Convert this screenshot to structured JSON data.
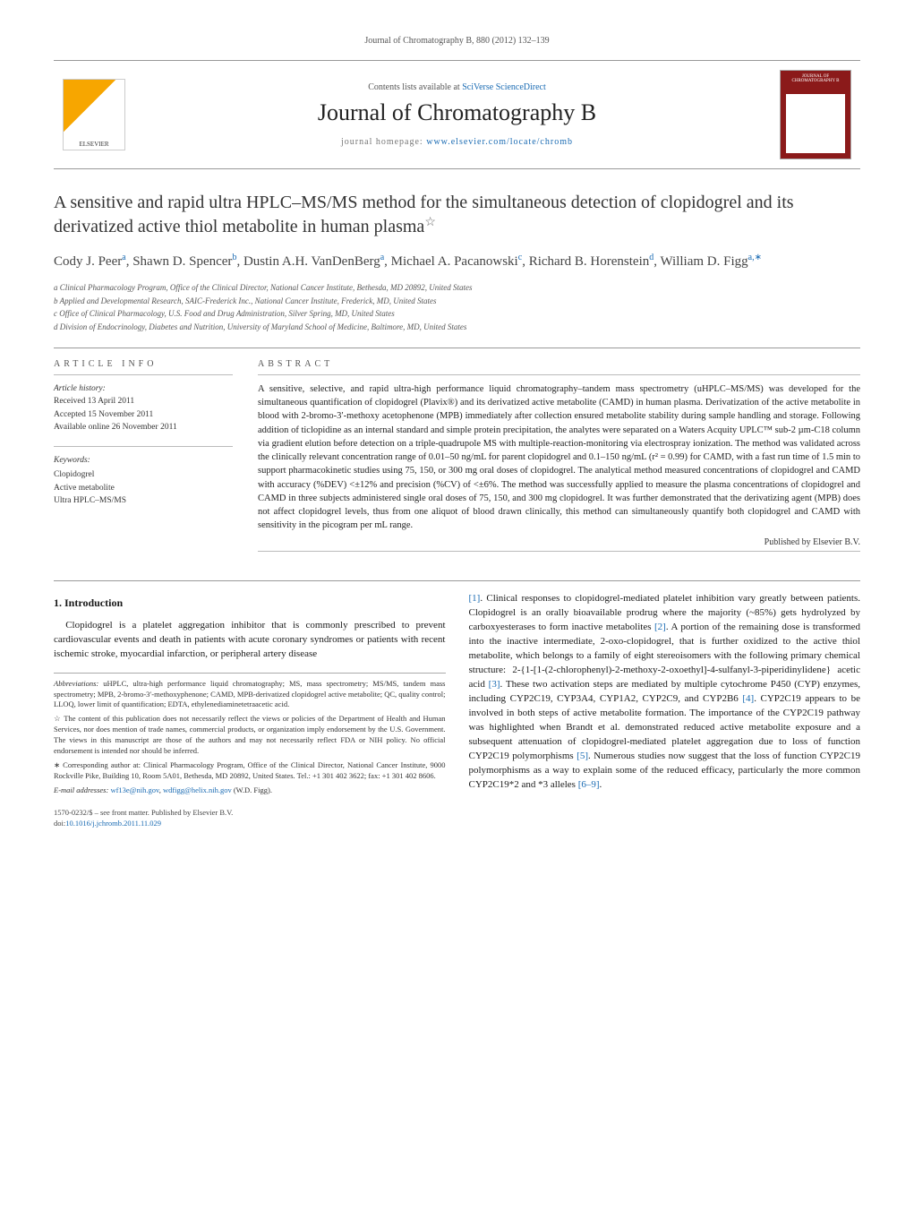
{
  "runningHead": "Journal of Chromatography B, 880 (2012) 132–139",
  "masthead": {
    "contentsPrefix": "Contents lists available at ",
    "contentsLink": "SciVerse ScienceDirect",
    "journalName": "Journal of Chromatography B",
    "homepagePrefix": "journal homepage: ",
    "homepageUrl": "www.elsevier.com/locate/chromb",
    "elsevierLabel": "ELSEVIER",
    "coverLabel": "JOURNAL OF CHROMATOGRAPHY B"
  },
  "title": "A sensitive and rapid ultra HPLC–MS/MS method for the simultaneous detection of clopidogrel and its derivatized active thiol metabolite in human plasma",
  "titleStar": "☆",
  "authorsLine": "Cody J. Peer",
  "authorsHtmlParts": {
    "a1": "Cody J. Peer",
    "s1": "a",
    "a2": "Shawn D. Spencer",
    "s2": "b",
    "a3": "Dustin A.H. VanDenBerg",
    "s3": "a",
    "a4": "Michael A. Pacanowski",
    "s4": "c",
    "a5": "Richard B. Horenstein",
    "s5": "d",
    "a6": "William D. Figg",
    "s6": "a,∗"
  },
  "affiliations": {
    "a": "a Clinical Pharmacology Program, Office of the Clinical Director, National Cancer Institute, Bethesda, MD 20892, United States",
    "b": "b Applied and Developmental Research, SAIC-Frederick Inc., National Cancer Institute, Frederick, MD, United States",
    "c": "c Office of Clinical Pharmacology, U.S. Food and Drug Administration, Silver Spring, MD, United States",
    "d": "d Division of Endocrinology, Diabetes and Nutrition, University of Maryland School of Medicine, Baltimore, MD, United States"
  },
  "articleInfo": {
    "head": "ARTICLE INFO",
    "historyHead": "Article history:",
    "received": "Received 13 April 2011",
    "accepted": "Accepted 15 November 2011",
    "online": "Available online 26 November 2011",
    "keywordsHead": "Keywords:",
    "kw1": "Clopidogrel",
    "kw2": "Active metabolite",
    "kw3": "Ultra HPLC–MS/MS"
  },
  "abstract": {
    "head": "ABSTRACT",
    "text": "A sensitive, selective, and rapid ultra-high performance liquid chromatography–tandem mass spectrometry (uHPLC–MS/MS) was developed for the simultaneous quantification of clopidogrel (Plavix®) and its derivatized active metabolite (CAMD) in human plasma. Derivatization of the active metabolite in blood with 2-bromo-3′-methoxy acetophenone (MPB) immediately after collection ensured metabolite stability during sample handling and storage. Following addition of ticlopidine as an internal standard and simple protein precipitation, the analytes were separated on a Waters Acquity UPLC™ sub-2 µm-C18 column via gradient elution before detection on a triple-quadrupole MS with multiple-reaction-monitoring via electrospray ionization. The method was validated across the clinically relevant concentration range of 0.01–50 ng/mL for parent clopidogrel and 0.1–150 ng/mL (r² = 0.99) for CAMD, with a fast run time of 1.5 min to support pharmacokinetic studies using 75, 150, or 300 mg oral doses of clopidogrel. The analytical method measured concentrations of clopidogrel and CAMD with accuracy (%DEV) <±12% and precision (%CV) of <±6%. The method was successfully applied to measure the plasma concentrations of clopidogrel and CAMD in three subjects administered single oral doses of 75, 150, and 300 mg clopidogrel. It was further demonstrated that the derivatizing agent (MPB) does not affect clopidogrel levels, thus from one aliquot of blood drawn clinically, this method can simultaneously quantify both clopidogrel and CAMD with sensitivity in the picogram per mL range.",
    "pubBy": "Published by Elsevier B.V."
  },
  "intro": {
    "head": "1. Introduction",
    "p1": "Clopidogrel is a platelet aggregation inhibitor that is commonly prescribed to prevent cardiovascular events and death in patients with acute coronary syndromes or patients with recent ischemic stroke, myocardial infarction, or peripheral artery disease",
    "p2a": ". Clinical responses to clopidogrel-mediated platelet inhibition vary greatly between patients. Clopidogrel is an orally bioavailable prodrug where the majority (~85%) gets hydrolyzed by carboxyesterases to form inactive metabolites ",
    "p2b": ". A portion of the remaining dose is transformed into the inactive intermediate, 2-oxo-clopidogrel, that is further oxidized to the active thiol metabolite, which belongs to a family of eight stereoisomers with the following primary chemical structure: 2-{1-[1-(2-chlorophenyl)-2-methoxy-2-oxoethyl]-4-sulfanyl-3-piperidinylidene} acetic acid ",
    "p2c": ". These two activation steps are mediated by multiple cytochrome P450 (CYP) enzymes, including CYP2C19, CYP3A4, CYP1A2, CYP2C9, and CYP2B6 ",
    "p2d": ". CYP2C19 appears to be involved in both steps of active metabolite formation. The importance of the CYP2C19 pathway was highlighted when Brandt et al. demonstrated reduced active metabolite exposure and a subsequent attenuation of clopidogrel-mediated platelet aggregation due to loss of function CYP2C19 polymorphisms ",
    "p2e": ". Numerous studies now suggest that the loss of function CYP2C19 polymorphisms as a way to explain some of the reduced efficacy, particularly the more common CYP2C19*2 and *3 alleles ",
    "p2f": ".",
    "r1": "[1]",
    "r2": "[2]",
    "r3": "[3]",
    "r4": "[4]",
    "r5": "[5]",
    "r69": "[6–9]"
  },
  "footnotes": {
    "abbrHead": "Abbreviations:",
    "abbr": " uHPLC, ultra-high performance liquid chromatography; MS, mass spectrometry; MS/MS, tandem mass spectrometry; MPB, 2-bromo-3′-methoxyphenone; CAMD, MPB-derivatized clopidogrel active metabolite; QC, quality control; LLOQ, lower limit of quantification; EDTA, ethylenediaminetetraacetic acid.",
    "star": "☆ The content of this publication does not necessarily reflect the views or policies of the Department of Health and Human Services, nor does mention of trade names, commercial products, or organization imply endorsement by the U.S. Government. The views in this manuscript are those of the authors and may not necessarily reflect FDA or NIH policy. No official endorsement is intended nor should be inferred.",
    "corr": "∗ Corresponding author at: Clinical Pharmacology Program, Office of the Clinical Director, National Cancer Institute, 9000 Rockville Pike, Building 10, Room 5A01, Bethesda, MD 20892, United States. Tel.: +1 301 402 3622; fax: +1 301 402 8606.",
    "emailHead": "E-mail addresses: ",
    "email1": "wf13e@nih.gov",
    "emailSep": ", ",
    "email2": "wdfigg@helix.nih.gov",
    "emailTail": " (W.D. Figg)."
  },
  "copyright": "1570-0232/$ – see front matter. Published by Elsevier B.V.",
  "doiPrefix": "doi:",
  "doi": "10.1016/j.jchromb.2011.11.029",
  "colors": {
    "link": "#1a6bb3",
    "text": "#1a1a1a",
    "rule": "#999999",
    "coverRed": "#8b1a1a",
    "elsevierOrange": "#f7a600"
  },
  "layout": {
    "pageWidth": 1021,
    "pageHeight": 1351,
    "columns": 2,
    "columnGap": 26,
    "baseFontSize": 11,
    "titleFontSize": 20,
    "journalNameFontSize": 26
  }
}
